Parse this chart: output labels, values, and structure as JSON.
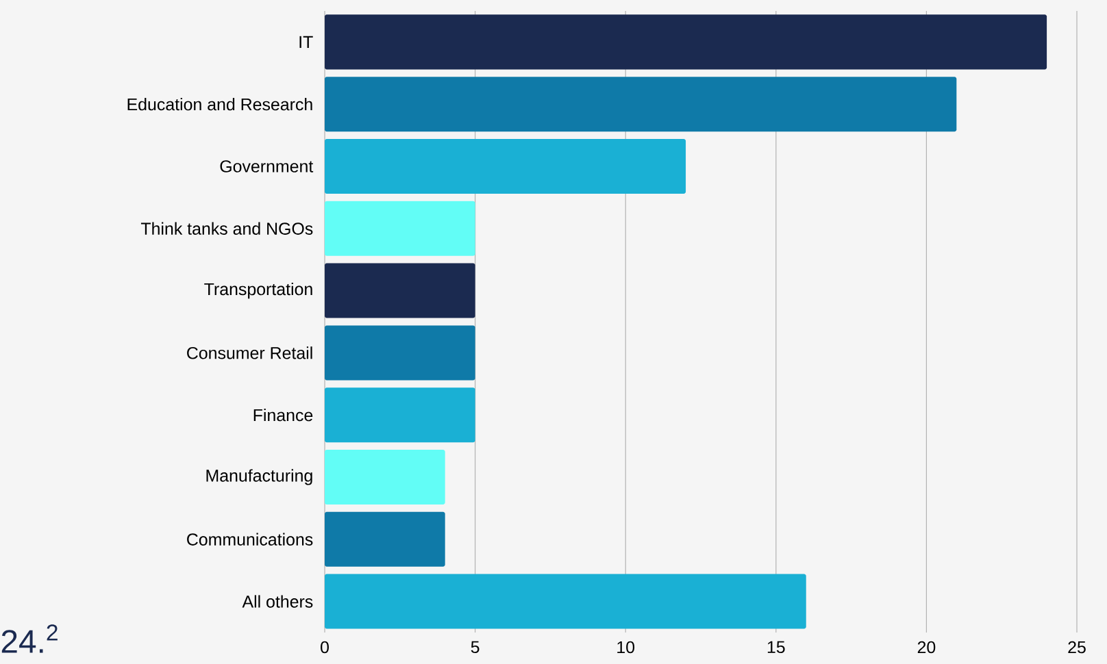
{
  "chart_data": {
    "type": "bar",
    "orientation": "horizontal",
    "categories": [
      "IT",
      "Education and Research",
      "Government",
      "Think tanks and NGOs",
      "Transportation",
      "Consumer Retail",
      "Finance",
      "Manufacturing",
      "Communications",
      "All others"
    ],
    "values": [
      24,
      21,
      12,
      5,
      5,
      5,
      5,
      4,
      4,
      16
    ],
    "colors": [
      "#1b2a50",
      "#0f7aa8",
      "#1ab0d4",
      "#62fdf6",
      "#1b2a50",
      "#0f7aa8",
      "#1ab0d4",
      "#62fdf6",
      "#0f7aa8",
      "#1ab0d4"
    ],
    "xlim": [
      0,
      25
    ],
    "xticks": [
      0,
      5,
      10,
      15,
      20,
      25
    ],
    "grid": "x",
    "annotations": [
      "24.$^{2}$"
    ]
  }
}
